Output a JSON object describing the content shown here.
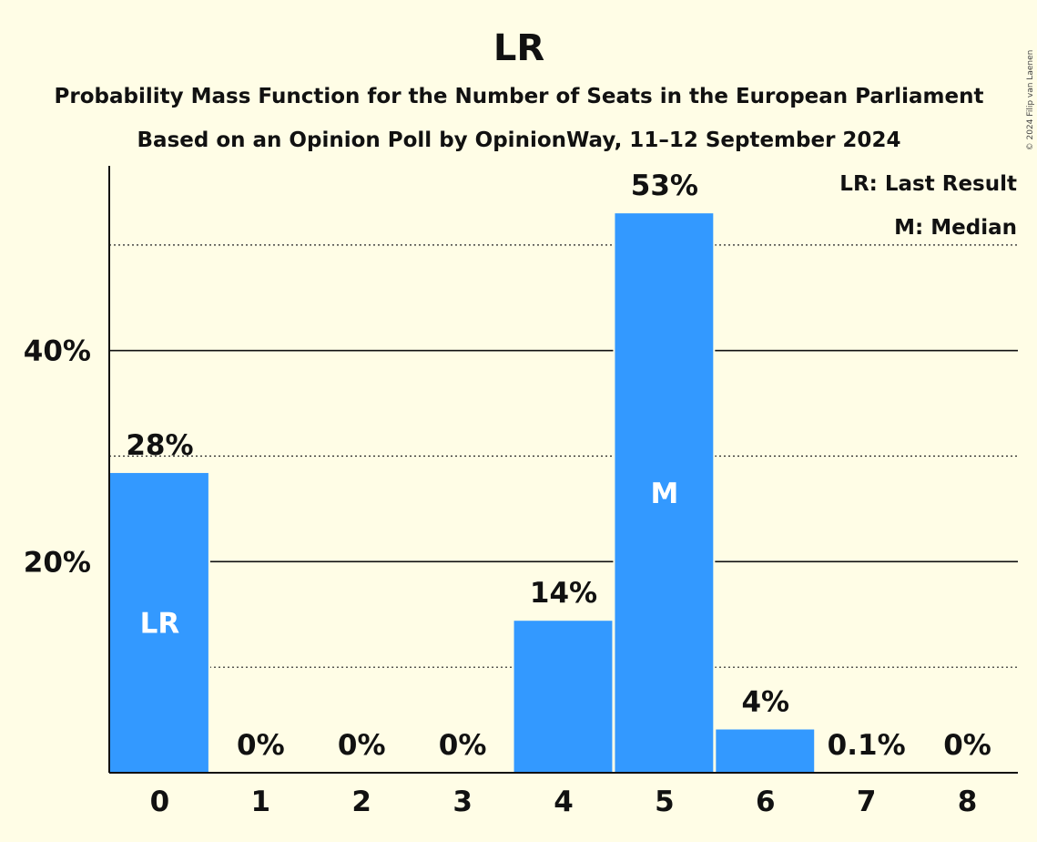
{
  "copyright": "© 2024 Filip van Laenen",
  "chart_data": {
    "type": "bar",
    "title": "LR",
    "subtitle": "Probability Mass Function for the Number of Seats in the European Parliament",
    "subtitle2": "Based on an Opinion Poll by OpinionWay, 11–12 September 2024",
    "categories": [
      "0",
      "1",
      "2",
      "3",
      "4",
      "5",
      "6",
      "7",
      "8"
    ],
    "values": [
      28.4,
      0,
      0,
      0,
      14.4,
      53,
      4.1,
      0.1,
      0
    ],
    "value_labels": [
      "28%",
      "0%",
      "0%",
      "0%",
      "14%",
      "53%",
      "4%",
      "0.1%",
      "0%"
    ],
    "bar_markers": {
      "0": "LR",
      "5": "M"
    },
    "ylim": [
      0,
      57.5
    ],
    "yticks": [
      20,
      40
    ],
    "ytick_labels": [
      "20%",
      "40%"
    ],
    "minor_gridlines": [
      10,
      30,
      50
    ],
    "grid": true,
    "legend": [
      "LR: Last Result",
      "M: Median"
    ],
    "legend_position": "top-right",
    "bar_color": "#3399ff",
    "background": "#fffde6"
  }
}
